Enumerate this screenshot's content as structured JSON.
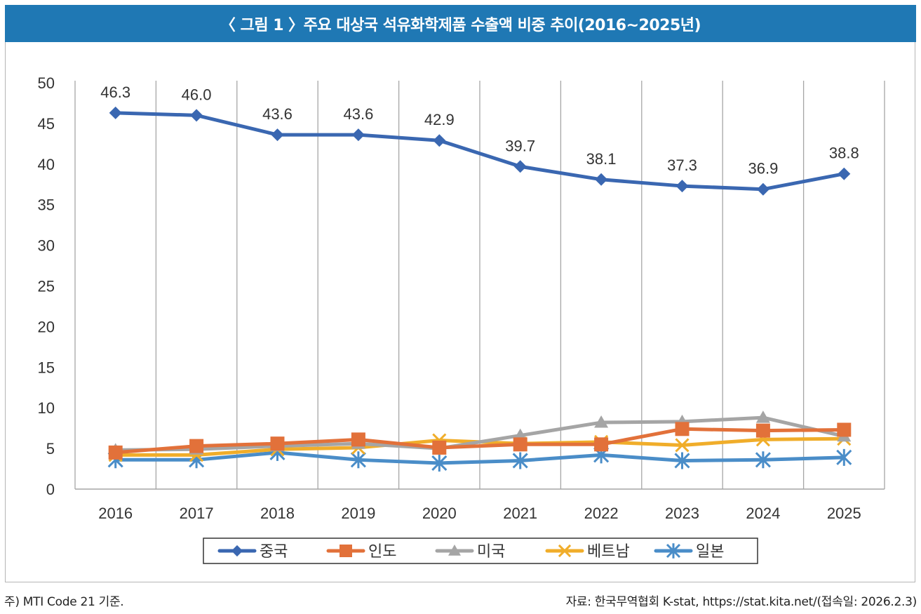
{
  "figure": {
    "title": "〈 그림 1 〉주요 대상국 석유화학제품 수출액 비중 추이(2016~2025년)",
    "colors": {
      "banner": "#1f78b4",
      "china": "#3a67b1",
      "india": "#e2713a",
      "usa": "#a5a5a5",
      "vietnam": "#f0ad2a",
      "japan": "#4a8dc8"
    }
  },
  "footnotes": {
    "note": "주) MTI Code 21 기준.",
    "source": "자료: 한국무역협회 K-stat, https://stat.kita.net/(접속일: 2026.2.3)"
  },
  "chart_data": {
    "type": "line",
    "title": "〈 그림 1 〉주요 대상국 석유화학제품 수출액 비중 추이(2016~2025년)",
    "xlabel": "",
    "ylabel": "",
    "categories": [
      "2016",
      "2017",
      "2018",
      "2019",
      "2020",
      "2021",
      "2022",
      "2023",
      "2024",
      "2025"
    ],
    "ylim": [
      0,
      50
    ],
    "yticks": [
      0,
      5,
      10,
      15,
      20,
      25,
      30,
      35,
      40,
      45,
      50
    ],
    "grid": "vertical",
    "legend": "bottom",
    "series": [
      {
        "name": "중국",
        "key": "china",
        "marker": "diamond",
        "values": [
          46.3,
          46.0,
          43.6,
          43.6,
          42.9,
          39.7,
          38.1,
          37.3,
          36.9,
          38.8
        ],
        "labels": [
          "46.3",
          "46.0",
          "43.6",
          "43.6",
          "42.9",
          "39.7",
          "38.1",
          "37.3",
          "36.9",
          "38.8"
        ]
      },
      {
        "name": "인도",
        "key": "india",
        "marker": "square",
        "values": [
          4.5,
          5.3,
          5.6,
          6.1,
          5.1,
          5.5,
          5.5,
          7.4,
          7.2,
          7.3
        ]
      },
      {
        "name": "미국",
        "key": "usa",
        "marker": "triangle",
        "values": [
          4.8,
          4.9,
          5.3,
          5.6,
          5.0,
          6.6,
          8.2,
          8.3,
          8.8,
          6.5
        ]
      },
      {
        "name": "베트남",
        "key": "vietnam",
        "marker": "x",
        "values": [
          4.2,
          4.2,
          4.9,
          5.1,
          6.0,
          5.6,
          5.8,
          5.4,
          6.1,
          6.2
        ]
      },
      {
        "name": "일본",
        "key": "japan",
        "marker": "star",
        "values": [
          3.6,
          3.6,
          4.5,
          3.6,
          3.2,
          3.5,
          4.2,
          3.5,
          3.6,
          3.9
        ]
      }
    ]
  }
}
